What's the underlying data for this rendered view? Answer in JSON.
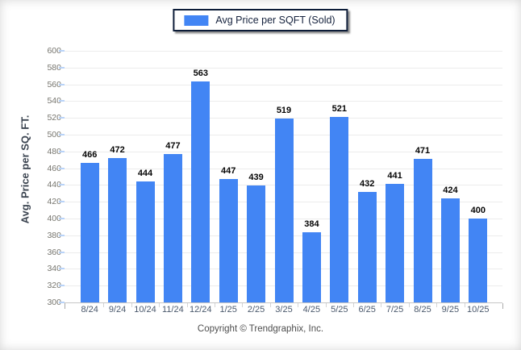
{
  "legend": {
    "label": "Avg Price per SQFT (Sold)",
    "swatch_color": "#4285f4"
  },
  "chart_data": {
    "type": "bar",
    "title": "Avg Price per SQFT (Sold)",
    "categories": [
      "8/24",
      "9/24",
      "10/24",
      "11/24",
      "12/24",
      "1/25",
      "2/25",
      "3/25",
      "4/25",
      "5/25",
      "6/25",
      "7/25",
      "8/25",
      "9/25",
      "10/25"
    ],
    "values": [
      466,
      472,
      444,
      477,
      563,
      447,
      439,
      519,
      384,
      521,
      432,
      441,
      471,
      424,
      400
    ],
    "xlabel": "",
    "ylabel": "Avg. Price per SQ. FT.",
    "ylim": [
      300,
      600
    ],
    "ytick_step": 20,
    "grid": "horizontal",
    "legend_position": "top-center",
    "value_labels": true,
    "bar_color": "#4285f4"
  },
  "footer": {
    "copyright": "Copyright © Trendgraphix, Inc."
  },
  "colors": {
    "bar": "#4285f4",
    "gridline": "#ececec",
    "axis_baseline": "#c6c6c6",
    "legend_border": "#0c1c38",
    "y_tick_text": "#76756e",
    "x_tick_text": "#4c5a6d",
    "value_label_text": "#060606"
  }
}
